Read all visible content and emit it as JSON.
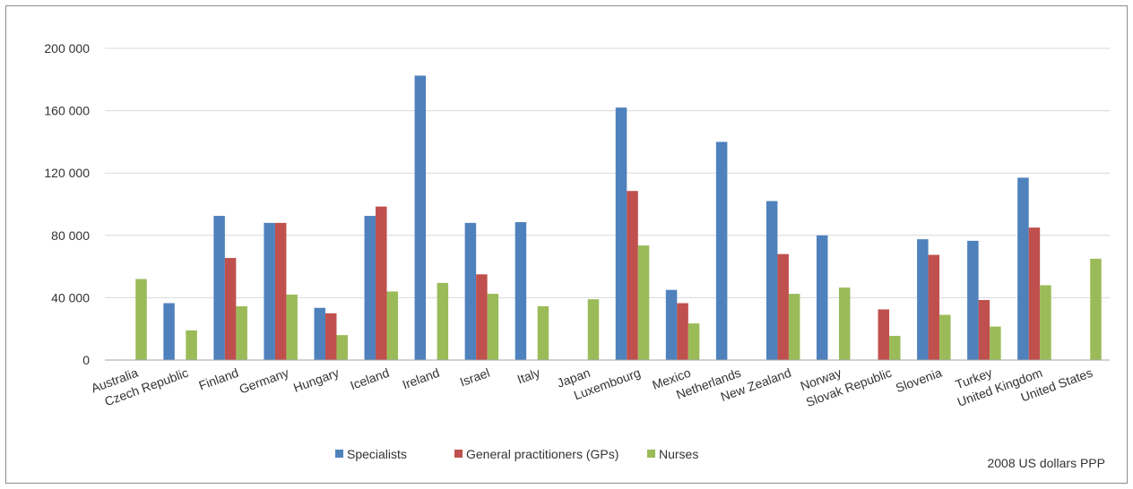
{
  "chart_data": {
    "type": "bar",
    "title": "",
    "xlabel": "",
    "ylabel": "",
    "ylim": [
      0,
      200000
    ],
    "yticks": [
      0,
      40000,
      80000,
      120000,
      160000,
      200000
    ],
    "ytick_labels": [
      "0",
      "40 000",
      "80 000",
      "120 000",
      "160 000",
      "200 000"
    ],
    "grid": true,
    "legend_position": "bottom",
    "note": "2008 US dollars PPP",
    "categories": [
      "Australia",
      "Czech Republic",
      "Finland",
      "Germany",
      "Hungary",
      "Iceland",
      "Ireland",
      "Israel",
      "Italy",
      "Japan",
      "Luxembourg",
      "Mexico",
      "Netherlands",
      "New Zealand",
      "Norway",
      "Slovak Republic",
      "Slovenia",
      "Turkey",
      "United Kingdom",
      "United States"
    ],
    "series": [
      {
        "name": "Specialists",
        "color": "#4f81bd",
        "values": [
          null,
          36500,
          92500,
          88000,
          33500,
          92500,
          182500,
          88000,
          88500,
          null,
          162000,
          45000,
          140000,
          102000,
          80000,
          null,
          77500,
          76500,
          117000,
          null
        ]
      },
      {
        "name": "General practitioners (GPs)",
        "color": "#c0504d",
        "values": [
          null,
          null,
          65500,
          88000,
          30000,
          98500,
          null,
          55000,
          null,
          null,
          108500,
          36500,
          null,
          68000,
          null,
          32500,
          67500,
          38500,
          85000,
          null
        ]
      },
      {
        "name": "Nurses",
        "color": "#9bbb59",
        "values": [
          52000,
          19000,
          34500,
          42000,
          16000,
          44000,
          49500,
          42500,
          34500,
          39000,
          73500,
          23500,
          null,
          42500,
          46500,
          15500,
          29000,
          21500,
          48000,
          65000
        ]
      }
    ]
  }
}
